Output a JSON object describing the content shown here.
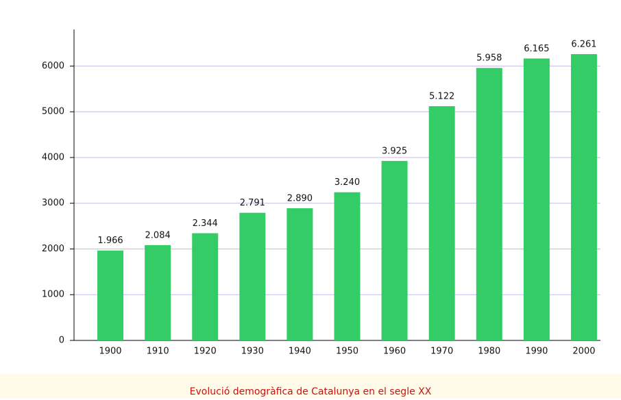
{
  "chart_data": {
    "type": "bar",
    "title": "Evolució demogràfica de Catalunya en el segle XX",
    "categories": [
      "1900",
      "1910",
      "1920",
      "1930",
      "1940",
      "1950",
      "1960",
      "1970",
      "1980",
      "1990",
      "2000"
    ],
    "values": [
      1966,
      2084,
      2344,
      2791,
      2890,
      3240,
      3925,
      5122,
      5958,
      6165,
      6261
    ],
    "value_labels": [
      "1.966",
      "2.084",
      "2.344",
      "2.791",
      "2.890",
      "3.240",
      "3.925",
      "5.122",
      "5.958",
      "6.165",
      "6.261"
    ],
    "color": "#33cc66",
    "ylim": [
      0,
      6800
    ],
    "yticks": [
      0,
      1000,
      2000,
      3000,
      4000,
      5000,
      6000
    ],
    "grid": true
  }
}
